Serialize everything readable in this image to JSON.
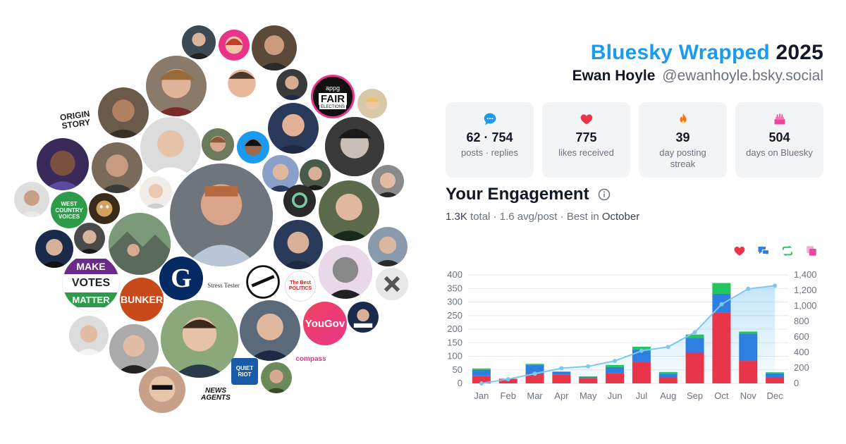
{
  "header": {
    "title_brand": "Bluesky Wrapped",
    "title_year": "2025",
    "user_name": "Ewan Hoyle",
    "user_handle": "@ewanhoyle.bsky.social"
  },
  "stats": [
    {
      "icon": "chat-bubble-icon",
      "value": "62 · 754",
      "label": "posts · replies",
      "color": "#1a9bf0"
    },
    {
      "icon": "heart-icon",
      "value": "775",
      "label": "likes received",
      "color": "#e8354a"
    },
    {
      "icon": "flame-icon",
      "value": "39",
      "label": "day posting streak",
      "color": "#f97316"
    },
    {
      "icon": "cake-icon",
      "value": "504",
      "label": "days on Bluesky",
      "color": "#ec4899"
    }
  ],
  "engagement": {
    "title": "Your Engagement",
    "total": "1.3K",
    "total_word": "total",
    "avg": "1.6 avg/post",
    "best_prefix": "Best in",
    "best_month": "October"
  },
  "bubble_labels": {
    "origin_story": "ORIGIN STORY",
    "appg": "appg",
    "fair": "FAIR",
    "elections": "ELECTIONS",
    "west_country": "WEST COUNTRY VOICES",
    "make": "MAKE",
    "votes": "VOTES",
    "matter": "MATTER",
    "bunker": "BUNKER",
    "guardian": "G",
    "stress_tester": "Stress Tester",
    "yougov": "YouGov",
    "compass": "compass",
    "quiet_riot": "QUIET RIOT",
    "news_agents": "NEWS AGENTS",
    "best_politics": "The Best POLITICS"
  },
  "chart_data": {
    "type": "bar",
    "categories": [
      "Jan",
      "Feb",
      "Mar",
      "Apr",
      "May",
      "Jun",
      "Jul",
      "Aug",
      "Sep",
      "Oct",
      "Nov",
      "Dec"
    ],
    "series": [
      {
        "name": "likes",
        "color": "#e8354a",
        "values": [
          28,
          17,
          35,
          32,
          20,
          38,
          78,
          22,
          113,
          260,
          83,
          22
        ]
      },
      {
        "name": "replies",
        "color": "#2f7fe0",
        "values": [
          22,
          0,
          33,
          10,
          4,
          22,
          47,
          14,
          55,
          70,
          100,
          15
        ]
      },
      {
        "name": "reposts",
        "color": "#22c55e",
        "values": [
          5,
          0,
          4,
          2,
          2,
          8,
          10,
          6,
          12,
          40,
          8,
          4
        ]
      },
      {
        "name": "quotes",
        "color": "#ec4899",
        "values": [
          0,
          0,
          0,
          0,
          0,
          0,
          0,
          0,
          0,
          0,
          0,
          0
        ]
      }
    ],
    "cumulative": {
      "color": "#7cc8f2",
      "values": [
        0,
        55,
        125,
        195,
        220,
        290,
        420,
        470,
        660,
        1020,
        1220,
        1260
      ]
    },
    "ylim_left": [
      0,
      400
    ],
    "yticks_left": [
      "0",
      "50",
      "100",
      "150",
      "200",
      "250",
      "300",
      "350",
      "400"
    ],
    "ylim_right": [
      0,
      1400
    ],
    "yticks_right": [
      "0",
      "200",
      "400",
      "600",
      "800",
      "1,000",
      "1,200",
      "1,400"
    ],
    "grid": true
  }
}
